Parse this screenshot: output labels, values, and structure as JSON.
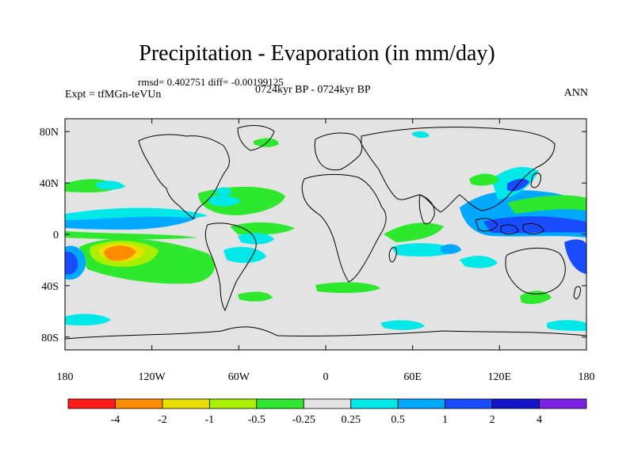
{
  "header": {
    "title": "Precipitation - Evaporation (in mm/day)",
    "stats": "rmsd= 0.402751 diff= -0.00199125",
    "experiment": "Expt = tfMGn-teVUn",
    "period": "0724kyr BP - 0724kyr BP",
    "season": "ANN"
  },
  "axes": {
    "x_ticks": [
      "180",
      "120W",
      "60W",
      "0",
      "60E",
      "120E",
      "180"
    ],
    "y_ticks": [
      "80N",
      "40N",
      "0",
      "40S",
      "80S"
    ]
  },
  "colorbar": {
    "colors": [
      "#ff1a1a",
      "#ff8c00",
      "#e8e000",
      "#a8f000",
      "#2ee82e",
      "#e3e3e3",
      "#00e8e8",
      "#00a8ff",
      "#1a4cff",
      "#1414c8",
      "#7a22e6"
    ],
    "labels": [
      "-4",
      "-2",
      "-1",
      "-0.5",
      "-0.25",
      "0.25",
      "0.5",
      "1",
      "2",
      "4"
    ]
  },
  "colors": {
    "land_ocean_neutral": "#e3e3e3",
    "coastline": "#000000"
  }
}
